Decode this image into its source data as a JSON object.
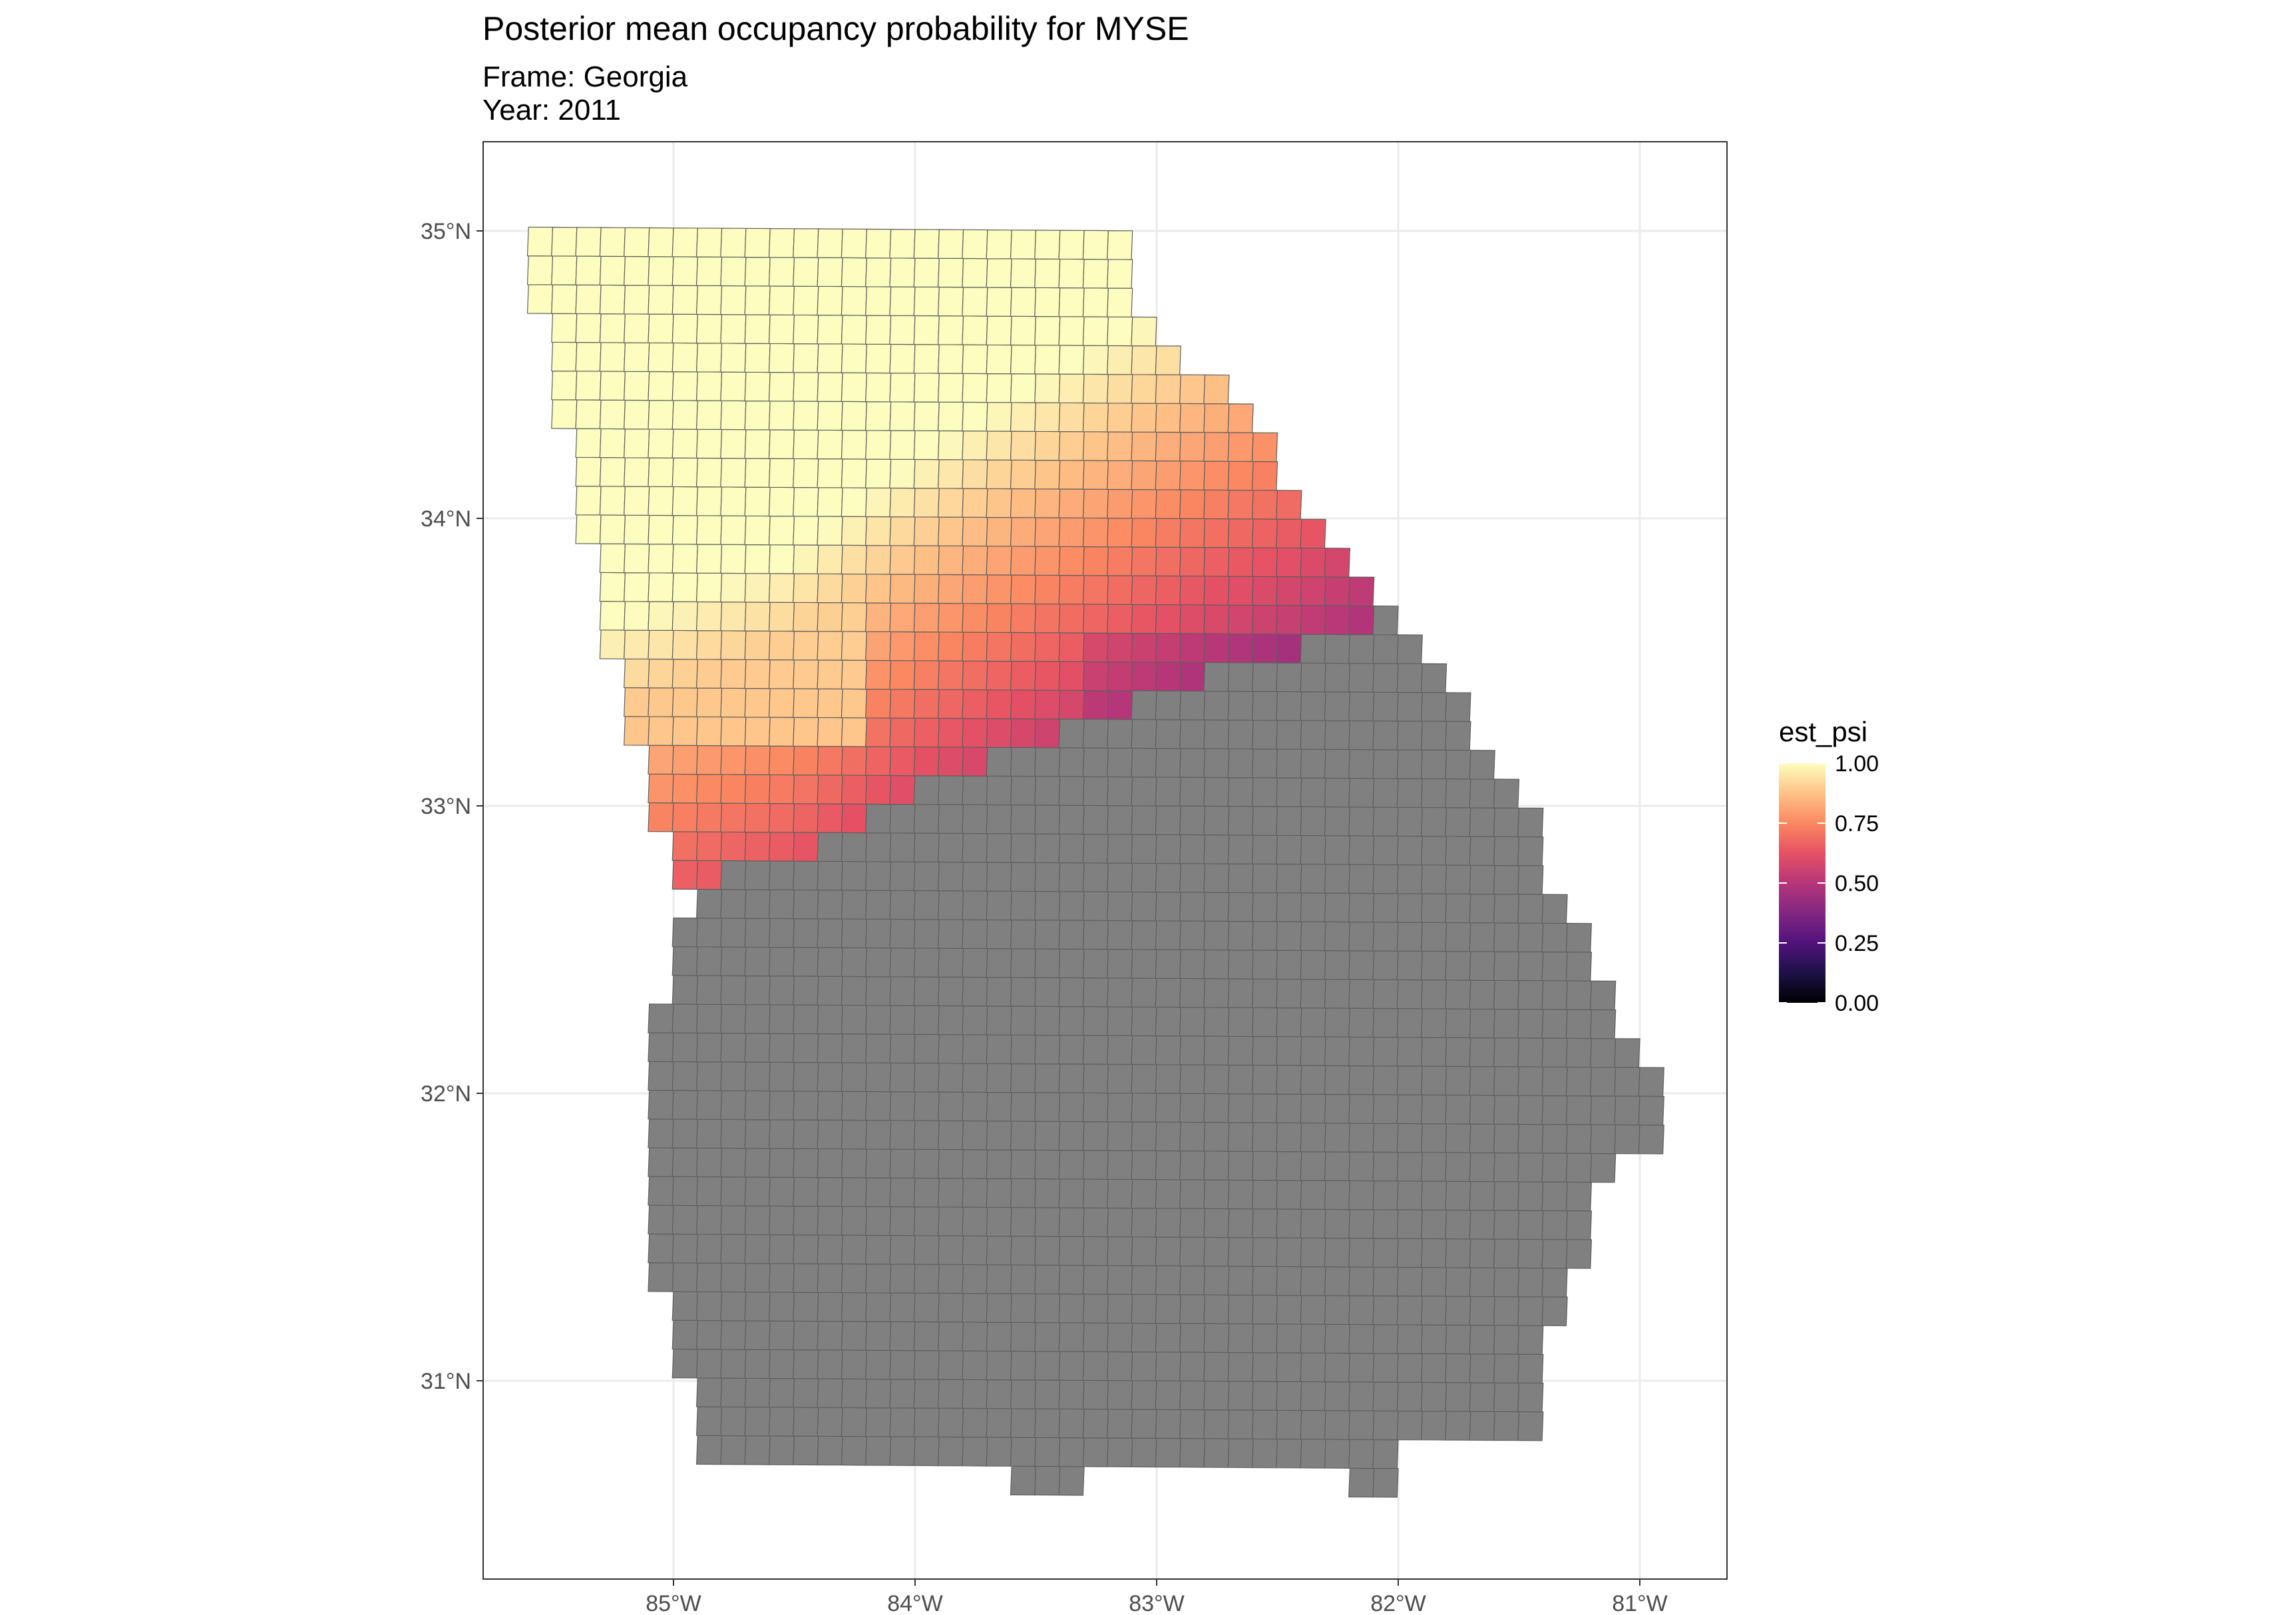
{
  "map": {
    "title": "Posterior mean occupancy probability for MYSE",
    "subtitle_frame": "Frame: Georgia",
    "subtitle_year": "Year: 2011",
    "lon_range": [
      -85.8,
      -80.66
    ],
    "lat_range": [
      30.31,
      35.31
    ],
    "x_ticks": [
      {
        "lon": -85,
        "label": "85°W"
      },
      {
        "lon": -84,
        "label": "84°W"
      },
      {
        "lon": -83,
        "label": "83°W"
      },
      {
        "lon": -82,
        "label": "82°W"
      },
      {
        "lon": -81,
        "label": "81°W"
      }
    ],
    "y_ticks": [
      {
        "lat": 35,
        "label": "35°N"
      },
      {
        "lat": 34,
        "label": "34°N"
      },
      {
        "lat": 33,
        "label": "33°N"
      },
      {
        "lat": 32,
        "label": "32°N"
      },
      {
        "lat": 31,
        "label": "31°N"
      }
    ],
    "legend": {
      "title": "est_psi",
      "labels": [
        "1.00",
        "0.75",
        "0.50",
        "0.25",
        "0.00"
      ],
      "values": [
        1.0,
        0.75,
        0.5,
        0.25,
        0.0
      ],
      "palette": "magma",
      "na_color": "#808080"
    },
    "colors": {
      "cell_border": "#5f5f5f",
      "no_data_fill": "#808080",
      "grid": "#ebebeb",
      "panel_border": "#333333"
    }
  },
  "chart_data": {
    "type": "heatmap",
    "title": "Posterior mean occupancy probability for MYSE",
    "subtitle": "Frame: Georgia / Year: 2011",
    "fill_variable": "est_psi",
    "fill_range": [
      0,
      1
    ],
    "grid_resolution_deg": 0.1,
    "grid_description": "Grid cells of 0.1 degree; estimates present only in northern Georgia (north of roughly 32.8°N–33.7°N diagonal), remaining cells have no estimate (grey).",
    "cells_estimated": {
      "northwest_core_lat_34.4_35.0": 0.97,
      "north_central_lat_34.0": 0.85,
      "west_central_lat_33.0_33.5": 0.8,
      "central_lat_33.3_33.6_lon_-84.0_-83.6": 0.7,
      "east_edge_lat_33.6_34.0_lon_-83.0_-82.3": 0.58,
      "min_near_lat_33.35_lon_-83.05": 0.45
    }
  }
}
